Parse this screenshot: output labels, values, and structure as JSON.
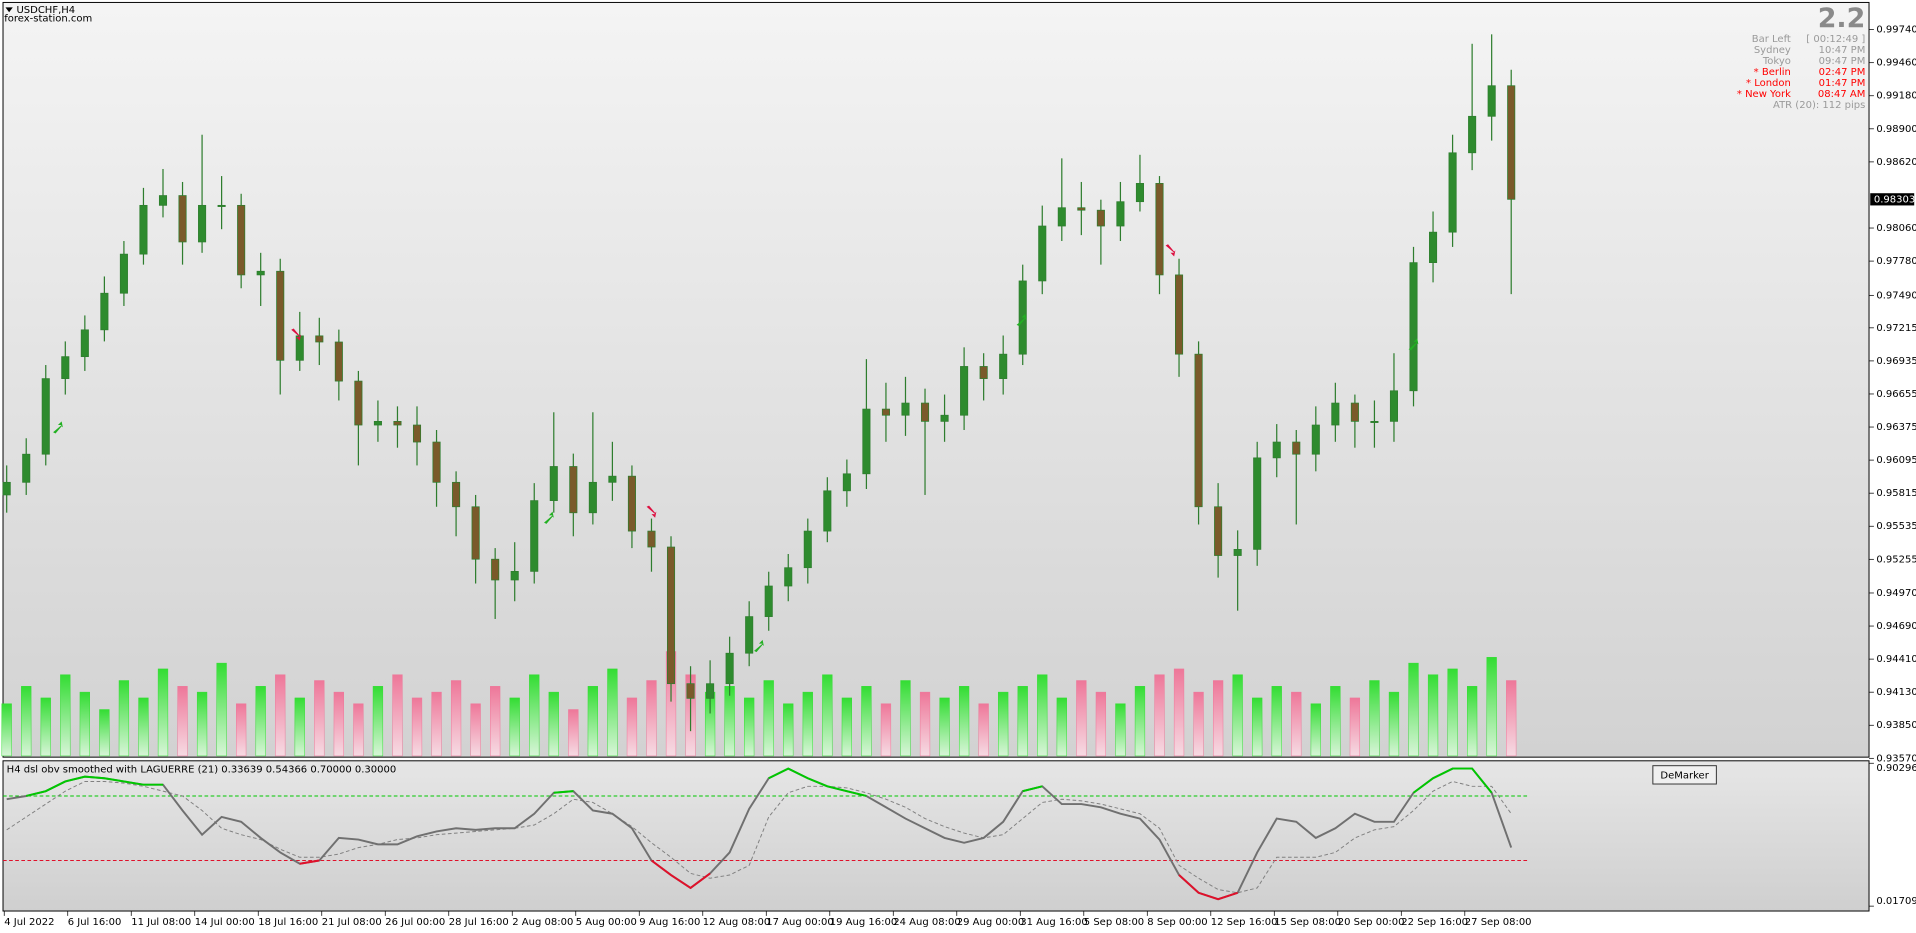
{
  "window": {
    "symbol": "USDCHF,H4",
    "source": "forex-station.com"
  },
  "info_panel": {
    "spread": "2.2",
    "rows": [
      {
        "label": "Bar Left",
        "value": "[ 00:12:49 ]",
        "color": "#9a9a9a"
      },
      {
        "label": "Sydney",
        "value": "10:47 PM",
        "color": "#9a9a9a"
      },
      {
        "label": "Tokyo",
        "value": "09:47 PM",
        "color": "#9a9a9a"
      },
      {
        "label": "* Berlin",
        "value": "02:47 PM",
        "color": "#ff0000"
      },
      {
        "label": "* London",
        "value": "01:47 PM",
        "color": "#ff0000"
      },
      {
        "label": "* New York",
        "value": "08:47 AM",
        "color": "#ff0000"
      }
    ],
    "atr": "ATR (20): 112 pips"
  },
  "button": "DeMarker",
  "chart_data": [
    {
      "type": "candlestick",
      "x_labels": [
        "4 Jul 2022",
        "6 Jul 16:00",
        "11 Jul 08:00",
        "14 Jul 00:00",
        "18 Jul 16:00",
        "21 Jul 08:00",
        "26 Jul 00:00",
        "28 Jul 16:00",
        "2 Aug 08:00",
        "5 Aug 00:00",
        "9 Aug 16:00",
        "12 Aug 08:00",
        "17 Aug 00:00",
        "19 Aug 16:00",
        "24 Aug 08:00",
        "29 Aug 00:00",
        "31 Aug 16:00",
        "5 Sep 08:00",
        "8 Sep 00:00",
        "12 Sep 16:00",
        "15 Sep 08:00",
        "20 Sep 00:00",
        "22 Sep 16:00",
        "27 Sep 08:00"
      ],
      "open": [
        0.958,
        0.95907,
        0.96145,
        0.96785,
        0.96971,
        0.97198,
        0.97508,
        0.97839,
        0.98252,
        0.98335,
        0.97942,
        0.98252,
        0.98252,
        0.97663,
        0.97694,
        0.9694,
        0.97147,
        0.97095,
        0.96764,
        0.96392,
        0.96423,
        0.96392,
        0.96248,
        0.95907,
        0.957,
        0.95256,
        0.9508,
        0.95153,
        0.95752,
        0.96041,
        0.95649,
        0.95907,
        0.95959,
        0.95494,
        0.95359,
        0.94202,
        0.94078,
        0.94202,
        0.9446,
        0.9477,
        0.95029,
        0.95184,
        0.95494,
        0.95835,
        0.95979,
        0.96527,
        0.96475,
        0.96578,
        0.96423,
        0.96475,
        0.96888,
        0.96785,
        0.96992,
        0.97612,
        0.98077,
        0.98232,
        0.98211,
        0.98077,
        0.98283,
        0.98438,
        0.97663,
        0.96992,
        0.957,
        0.95287,
        0.95339,
        0.96114,
        0.96248,
        0.96145,
        0.96392,
        0.96578,
        0.96423,
        0.96423,
        0.96682,
        0.97767,
        0.98025,
        0.98697,
        0.99006,
        0.99265
      ],
      "high": [
        0.9605,
        0.9628,
        0.969,
        0.971,
        0.9732,
        0.9765,
        0.9795,
        0.984,
        0.9856,
        0.9845,
        0.9885,
        0.985,
        0.9835,
        0.9785,
        0.978,
        0.9735,
        0.973,
        0.972,
        0.9685,
        0.966,
        0.9655,
        0.9655,
        0.9635,
        0.96,
        0.958,
        0.9535,
        0.954,
        0.959,
        0.965,
        0.9615,
        0.965,
        0.9625,
        0.9605,
        0.956,
        0.9545,
        0.9435,
        0.944,
        0.946,
        0.949,
        0.9515,
        0.953,
        0.956,
        0.9595,
        0.961,
        0.9695,
        0.9675,
        0.968,
        0.967,
        0.9665,
        0.9705,
        0.97,
        0.9715,
        0.9775,
        0.9825,
        0.9865,
        0.9845,
        0.983,
        0.9845,
        0.9868,
        0.985,
        0.978,
        0.971,
        0.959,
        0.955,
        0.9625,
        0.964,
        0.9635,
        0.9655,
        0.9675,
        0.9665,
        0.966,
        0.97,
        0.979,
        0.982,
        0.9885,
        0.9962,
        0.997,
        0.994
      ],
      "low": [
        0.9565,
        0.958,
        0.9605,
        0.9665,
        0.9685,
        0.971,
        0.974,
        0.9775,
        0.9815,
        0.9775,
        0.9785,
        0.9805,
        0.9755,
        0.974,
        0.9665,
        0.9685,
        0.969,
        0.966,
        0.9605,
        0.9625,
        0.962,
        0.9605,
        0.957,
        0.9545,
        0.9505,
        0.9475,
        0.949,
        0.9505,
        0.9565,
        0.9545,
        0.9555,
        0.9575,
        0.9535,
        0.9515,
        0.9405,
        0.938,
        0.9395,
        0.941,
        0.9435,
        0.9465,
        0.949,
        0.9505,
        0.954,
        0.957,
        0.9585,
        0.9625,
        0.963,
        0.958,
        0.9625,
        0.9635,
        0.966,
        0.9665,
        0.969,
        0.975,
        0.9795,
        0.98,
        0.9775,
        0.9795,
        0.982,
        0.975,
        0.968,
        0.9555,
        0.951,
        0.9482,
        0.952,
        0.9595,
        0.9555,
        0.96,
        0.9625,
        0.962,
        0.962,
        0.9625,
        0.9655,
        0.976,
        0.979,
        0.9855,
        0.988,
        0.975
      ],
      "close": [
        0.95907,
        0.96145,
        0.96785,
        0.96971,
        0.97198,
        0.97508,
        0.97839,
        0.98252,
        0.98335,
        0.97942,
        0.98252,
        0.98252,
        0.97663,
        0.97694,
        0.9694,
        0.97147,
        0.97095,
        0.96764,
        0.96392,
        0.96423,
        0.96392,
        0.96248,
        0.95907,
        0.957,
        0.95256,
        0.9508,
        0.95153,
        0.95752,
        0.96041,
        0.95649,
        0.95907,
        0.95959,
        0.95494,
        0.95359,
        0.94202,
        0.94078,
        0.94202,
        0.9446,
        0.9477,
        0.95029,
        0.95184,
        0.95494,
        0.95835,
        0.95979,
        0.96527,
        0.96475,
        0.96578,
        0.96423,
        0.96475,
        0.96888,
        0.96785,
        0.96992,
        0.97612,
        0.98077,
        0.98232,
        0.98211,
        0.98077,
        0.98283,
        0.98438,
        0.97663,
        0.96992,
        0.957,
        0.95287,
        0.95339,
        0.96114,
        0.96248,
        0.96145,
        0.96392,
        0.96578,
        0.96423,
        0.96423,
        0.96682,
        0.97767,
        0.98025,
        0.98697,
        0.99006,
        0.99265,
        0.98303
      ],
      "volume": [
        45,
        60,
        50,
        70,
        55,
        40,
        65,
        50,
        75,
        60,
        55,
        80,
        45,
        60,
        70,
        50,
        65,
        55,
        45,
        60,
        70,
        50,
        55,
        65,
        45,
        60,
        50,
        70,
        55,
        40,
        60,
        75,
        50,
        65,
        90,
        70,
        55,
        60,
        50,
        65,
        45,
        55,
        70,
        50,
        60,
        45,
        65,
        55,
        50,
        60,
        45,
        55,
        60,
        70,
        50,
        65,
        55,
        45,
        60,
        70,
        75,
        55,
        65,
        70,
        50,
        60,
        55,
        45,
        60,
        50,
        65,
        55,
        80,
        70,
        75,
        60,
        85,
        65
      ],
      "volume_ylim": [
        0,
        100
      ],
      "ylim": [
        0.9358,
        0.9997
      ],
      "yticks": [
        {
          "value": 0.9974,
          "label": "0.99740"
        },
        {
          "value": 0.9946,
          "label": "0.99460"
        },
        {
          "value": 0.9918,
          "label": "0.99180"
        },
        {
          "value": 0.989,
          "label": "0.98900"
        },
        {
          "value": 0.9862,
          "label": "0.98620"
        },
        {
          "value": 0.9806,
          "label": "0.98060"
        },
        {
          "value": 0.9778,
          "label": "0.97780"
        },
        {
          "value": 0.9749,
          "label": "0.97490"
        },
        0.97215,
        0.96935,
        0.96655,
        0.96375,
        0.96095,
        0.95815,
        0.95535,
        0.95255,
        {
          "value": 0.9497,
          "label": "0.94970"
        },
        {
          "value": 0.9469,
          "label": "0.94690"
        },
        {
          "value": 0.9441,
          "label": "0.94410"
        },
        {
          "value": 0.9413,
          "label": "0.94130"
        },
        {
          "value": 0.9385,
          "label": "0.93850"
        },
        {
          "value": 0.9357,
          "label": "0.93570"
        }
      ],
      "current_price": 0.98303,
      "colors": {
        "up": "#2e8b2e",
        "down": "#7a5a2a",
        "wick": "#2e7d2e",
        "volume_up": "#33dd33",
        "volume_down": "#ee7799"
      }
    },
    {
      "type": "line",
      "title": "H4 dsl obv smoothed with LAGUERRE (21) 0.33639 0.54366 0.70000 0.30000",
      "series": [
        {
          "color": "#707070",
          "values": [
            0.68,
            0.7,
            0.73,
            0.79,
            0.82,
            0.81,
            0.79,
            0.77,
            0.77,
            0.61,
            0.46,
            0.57,
            0.54,
            0.44,
            0.35,
            0.28,
            0.3,
            0.44,
            0.43,
            0.4,
            0.4,
            0.45,
            0.48,
            0.5,
            0.49,
            0.5,
            0.5,
            0.59,
            0.72,
            0.73,
            0.61,
            0.59,
            0.5,
            0.3,
            0.21,
            0.13,
            0.22,
            0.35,
            0.62,
            0.81,
            0.87,
            0.81,
            0.76,
            0.73,
            0.7,
            0.63,
            0.56,
            0.5,
            0.44,
            0.41,
            0.44,
            0.54,
            0.73,
            0.76,
            0.65,
            0.65,
            0.63,
            0.59,
            0.56,
            0.43,
            0.21,
            0.1,
            0.06,
            0.1,
            0.35,
            0.56,
            0.54,
            0.44,
            0.5,
            0.59,
            0.54,
            0.54,
            0.72,
            0.81,
            0.87,
            0.87,
            0.72,
            0.38
          ]
        },
        {
          "color": "#808080",
          "dashed": true,
          "values": [
            0.49,
            0.57,
            0.65,
            0.73,
            0.79,
            0.79,
            0.78,
            0.76,
            0.73,
            0.7,
            0.61,
            0.5,
            0.46,
            0.43,
            0.37,
            0.32,
            0.32,
            0.34,
            0.38,
            0.4,
            0.43,
            0.44,
            0.46,
            0.47,
            0.48,
            0.49,
            0.5,
            0.52,
            0.59,
            0.68,
            0.66,
            0.59,
            0.51,
            0.41,
            0.32,
            0.22,
            0.19,
            0.21,
            0.27,
            0.57,
            0.72,
            0.76,
            0.76,
            0.75,
            0.72,
            0.68,
            0.63,
            0.56,
            0.51,
            0.47,
            0.44,
            0.46,
            0.56,
            0.66,
            0.68,
            0.67,
            0.65,
            0.62,
            0.59,
            0.5,
            0.27,
            0.19,
            0.12,
            0.1,
            0.13,
            0.32,
            0.32,
            0.32,
            0.35,
            0.44,
            0.49,
            0.51,
            0.61,
            0.73,
            0.79,
            0.76,
            0.76,
            0.59
          ]
        }
      ],
      "levels": [
        {
          "value": 0.7,
          "color": "#00c800",
          "above": true
        },
        {
          "value": 0.3,
          "color": "#e0102a",
          "above": false
        }
      ],
      "ylim": [
        0.01709,
        0.90296
      ],
      "yticks": [
        0.90296,
        0.01709
      ]
    }
  ]
}
